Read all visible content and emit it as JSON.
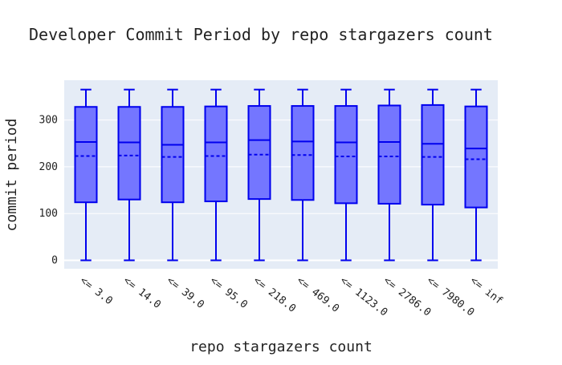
{
  "chart_data": {
    "type": "box",
    "title": "Developer Commit Period by repo stargazers count",
    "xlabel": "repo stargazers count",
    "ylabel": "commit period",
    "ylim": [
      -18,
      385
    ],
    "yticks": [
      0,
      100,
      200,
      300
    ],
    "grid": true,
    "legend": false,
    "colors": {
      "fill": "#7476ff",
      "line": "#0000ee",
      "plot_bg": "#e5ecf6",
      "grid": "#ffffff"
    },
    "categories": [
      "<= 3.0",
      "<= 14.0",
      "<= 39.0",
      "<= 95.0",
      "<= 218.0",
      "<= 469.0",
      "<= 1123.0",
      "<= 2786.0",
      "<= 7980.0",
      "<= inf"
    ],
    "boxes": [
      {
        "min": 0,
        "q1": 124,
        "median": 253,
        "mean": 223,
        "q3": 328,
        "max": 365
      },
      {
        "min": 0,
        "q1": 130,
        "median": 252,
        "mean": 224,
        "q3": 328,
        "max": 365
      },
      {
        "min": 0,
        "q1": 124,
        "median": 247,
        "mean": 221,
        "q3": 328,
        "max": 365
      },
      {
        "min": 0,
        "q1": 126,
        "median": 252,
        "mean": 223,
        "q3": 329,
        "max": 365
      },
      {
        "min": 0,
        "q1": 131,
        "median": 257,
        "mean": 226,
        "q3": 330,
        "max": 365
      },
      {
        "min": 0,
        "q1": 129,
        "median": 254,
        "mean": 225,
        "q3": 330,
        "max": 365
      },
      {
        "min": 0,
        "q1": 122,
        "median": 252,
        "mean": 222,
        "q3": 330,
        "max": 365
      },
      {
        "min": 0,
        "q1": 121,
        "median": 253,
        "mean": 222,
        "q3": 331,
        "max": 365
      },
      {
        "min": 0,
        "q1": 119,
        "median": 249,
        "mean": 221,
        "q3": 332,
        "max": 365
      },
      {
        "min": 0,
        "q1": 113,
        "median": 239,
        "mean": 216,
        "q3": 329,
        "max": 365
      }
    ]
  }
}
